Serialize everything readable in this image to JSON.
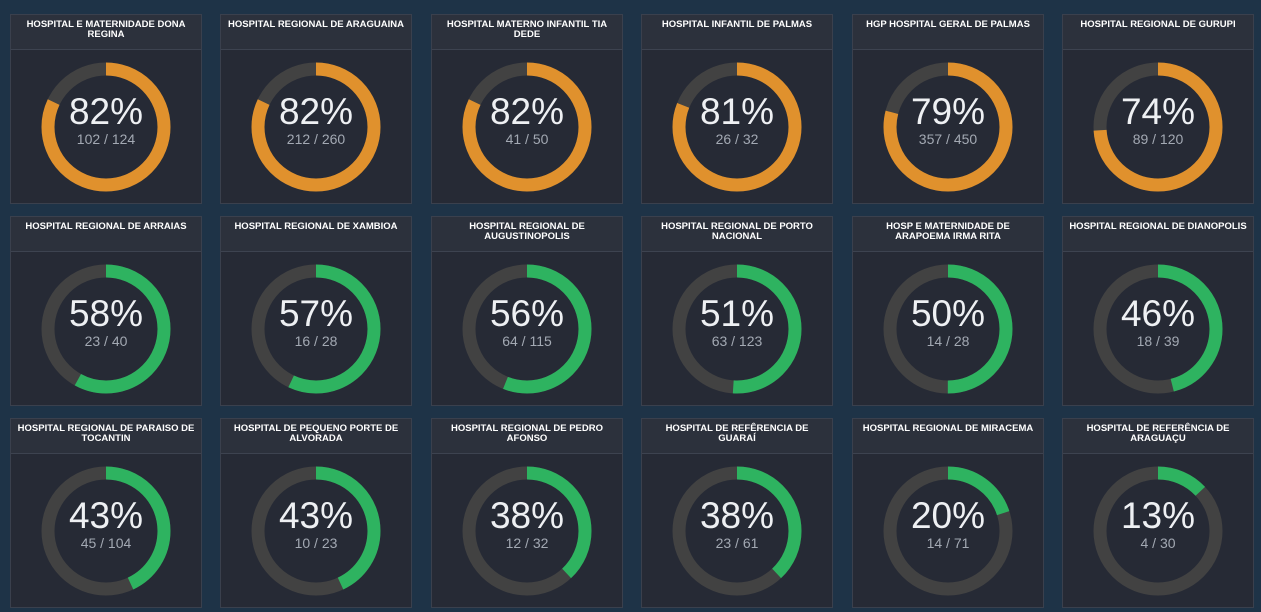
{
  "colors": {
    "orange": "#e0912d",
    "green": "#2eb360",
    "track": "#424242"
  },
  "cards": [
    {
      "title": "HOSPITAL E MATERNIDADE DONA REGINA",
      "percent": "82%",
      "ratio": "102 / 124",
      "fraction": 0.82,
      "color": "orange"
    },
    {
      "title": "HOSPITAL REGIONAL DE ARAGUAINA",
      "percent": "82%",
      "ratio": "212 / 260",
      "fraction": 0.82,
      "color": "orange"
    },
    {
      "title": "HOSPITAL MATERNO INFANTIL TIA DEDE",
      "percent": "82%",
      "ratio": "41 / 50",
      "fraction": 0.82,
      "color": "orange"
    },
    {
      "title": "HOSPITAL INFANTIL DE PALMAS",
      "percent": "81%",
      "ratio": "26 / 32",
      "fraction": 0.81,
      "color": "orange"
    },
    {
      "title": "HGP HOSPITAL GERAL DE PALMAS",
      "percent": "79%",
      "ratio": "357 / 450",
      "fraction": 0.79,
      "color": "orange"
    },
    {
      "title": "HOSPITAL REGIONAL DE GURUPI",
      "percent": "74%",
      "ratio": "89 / 120",
      "fraction": 0.74,
      "color": "orange"
    },
    {
      "title": "HOSPITAL REGIONAL DE ARRAIAS",
      "percent": "58%",
      "ratio": "23 / 40",
      "fraction": 0.58,
      "color": "green"
    },
    {
      "title": "HOSPITAL REGIONAL DE XAMBIOA",
      "percent": "57%",
      "ratio": "16 / 28",
      "fraction": 0.57,
      "color": "green"
    },
    {
      "title": "HOSPITAL REGIONAL DE AUGUSTINOPOLIS",
      "percent": "56%",
      "ratio": "64 / 115",
      "fraction": 0.56,
      "color": "green"
    },
    {
      "title": "HOSPITAL REGIONAL DE PORTO NACIONAL",
      "percent": "51%",
      "ratio": "63 / 123",
      "fraction": 0.51,
      "color": "green"
    },
    {
      "title": "HOSP E MATERNIDADE DE ARAPOEMA IRMA RITA",
      "percent": "50%",
      "ratio": "14 / 28",
      "fraction": 0.5,
      "color": "green"
    },
    {
      "title": "HOSPITAL REGIONAL DE DIANOPOLIS",
      "percent": "46%",
      "ratio": "18 / 39",
      "fraction": 0.46,
      "color": "green"
    },
    {
      "title": "HOSPITAL REGIONAL DE PARAISO DE TOCANTIN",
      "percent": "43%",
      "ratio": "45 / 104",
      "fraction": 0.43,
      "color": "green"
    },
    {
      "title": "HOSPITAL DE PEQUENO PORTE DE ALVORADA",
      "percent": "43%",
      "ratio": "10 / 23",
      "fraction": 0.43,
      "color": "green"
    },
    {
      "title": "HOSPITAL REGIONAL DE PEDRO AFONSO",
      "percent": "38%",
      "ratio": "12 / 32",
      "fraction": 0.38,
      "color": "green"
    },
    {
      "title": "HOSPITAL DE REFÊRENCIA DE GUARAÍ",
      "percent": "38%",
      "ratio": "23 / 61",
      "fraction": 0.38,
      "color": "green"
    },
    {
      "title": "HOSPITAL REGIONAL DE MIRACEMA",
      "percent": "20%",
      "ratio": "14 / 71",
      "fraction": 0.2,
      "color": "green"
    },
    {
      "title": "HOSPITAL DE REFERÊNCIA DE ARAGUAÇU",
      "percent": "13%",
      "ratio": "4 / 30",
      "fraction": 0.13,
      "color": "green"
    }
  ]
}
